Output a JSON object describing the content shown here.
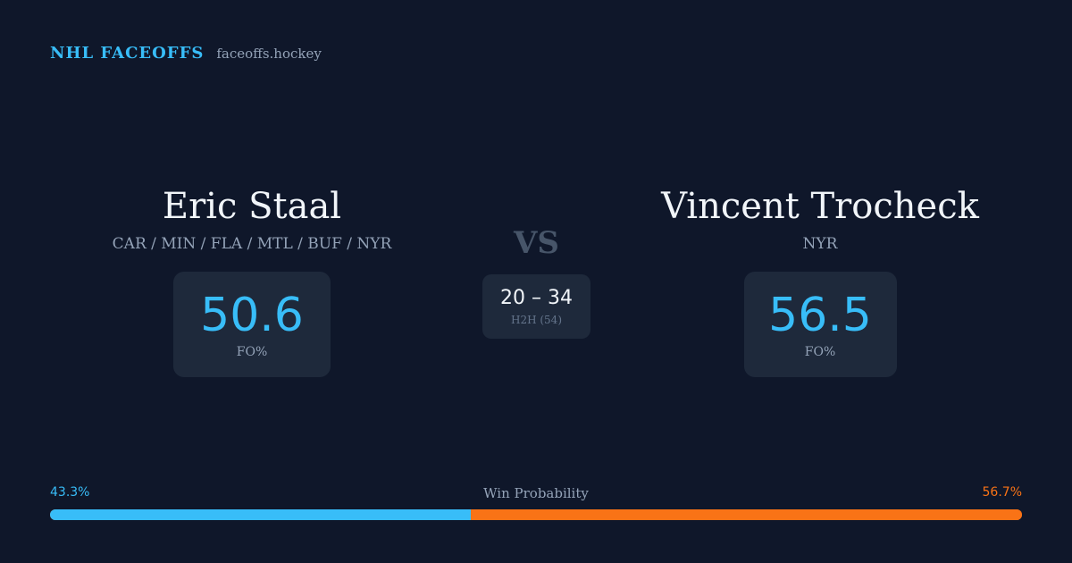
{
  "brand": {
    "title": "NHL FACEOFFS",
    "domain": "faceoffs.hockey"
  },
  "player_left": {
    "name": "Eric Staal",
    "teams": "CAR / MIN / FLA / MTL / BUF / NYR",
    "stat_value": "50.6",
    "stat_label": "FO%"
  },
  "player_right": {
    "name": "Vincent Trocheck",
    "teams": "NYR",
    "stat_value": "56.5",
    "stat_label": "FO%"
  },
  "matchup": {
    "vs_label": "VS",
    "h2h_score": "20 – 34",
    "h2h_label": "H2H (54)"
  },
  "win_probability": {
    "title": "Win Probability",
    "left_label": "43.3%",
    "right_label": "56.7%",
    "left_value": 43.3,
    "right_value": 56.7
  },
  "colors": {
    "background": "#0f172a",
    "card": "#1e293b",
    "accent_blue": "#38bdf8",
    "accent_orange": "#f97316"
  }
}
